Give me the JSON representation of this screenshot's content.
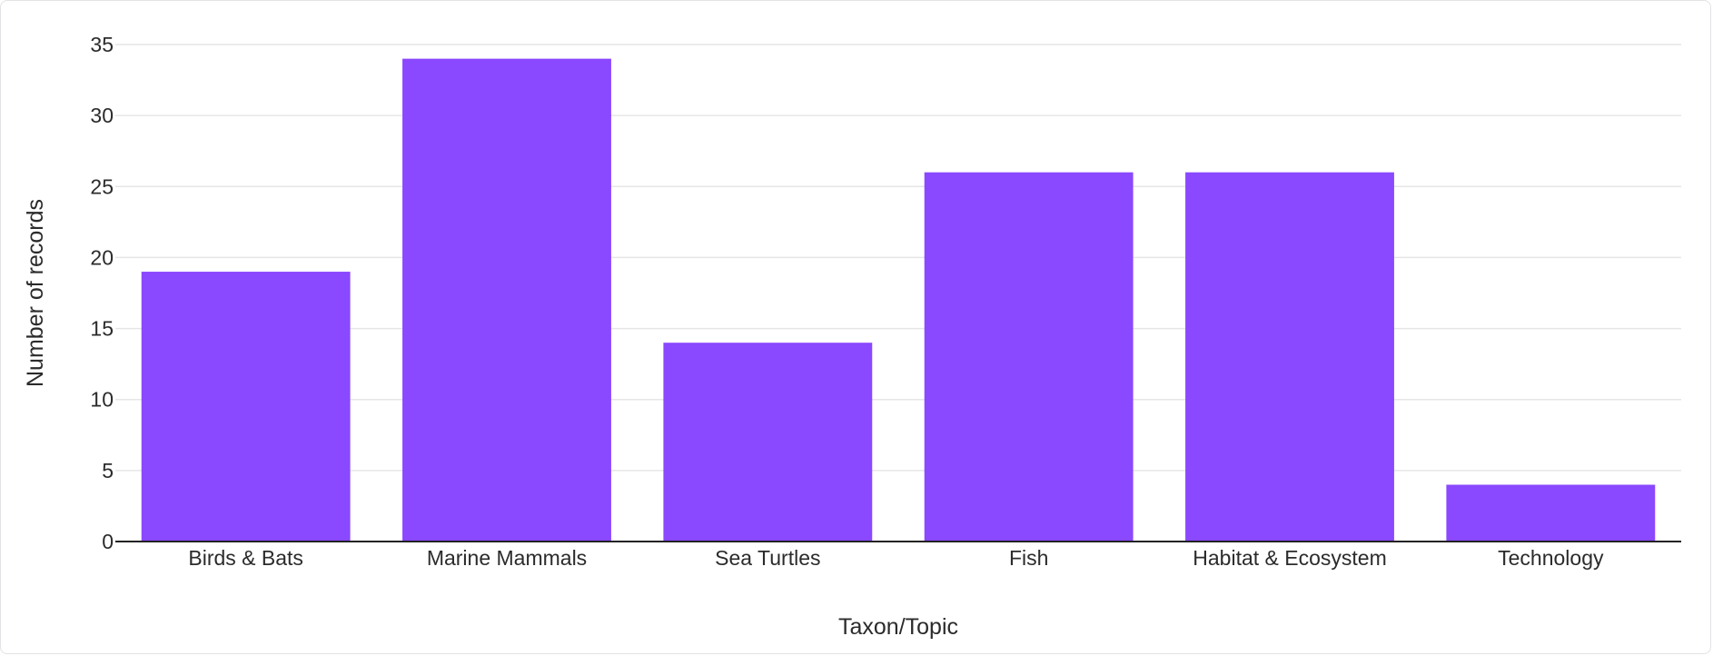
{
  "colors": {
    "bar": "#8a48ff",
    "grid": "#e6e6e6",
    "axis": "#222222",
    "text": "#2b2b2b"
  },
  "chart_data": {
    "type": "bar",
    "title": "",
    "xlabel": "Taxon/Topic",
    "ylabel": "Number of records",
    "categories": [
      "Birds & Bats",
      "Marine Mammals",
      "Sea Turtles",
      "Fish",
      "Habitat & Ecosystem",
      "Technology"
    ],
    "values": [
      19,
      34,
      14,
      26,
      26,
      4
    ],
    "yticks": [
      0,
      5,
      10,
      15,
      20,
      25,
      30,
      35
    ],
    "ylim": [
      0,
      35
    ],
    "grid": true,
    "legend": "none"
  }
}
